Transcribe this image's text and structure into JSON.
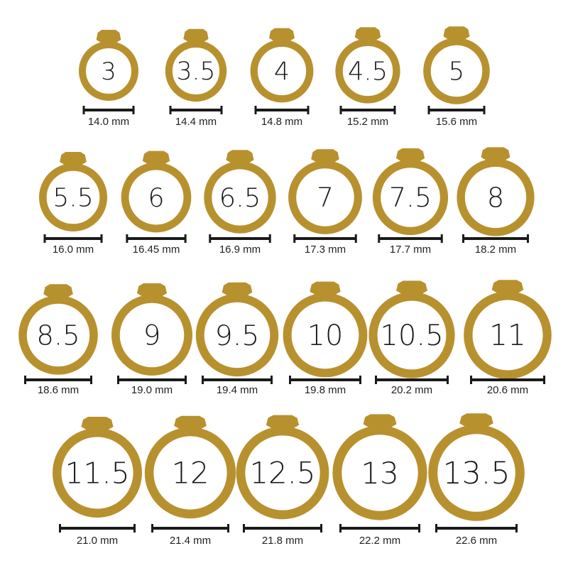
{
  "colors": {
    "gold": "#B8912F",
    "bar": "#1a1a1a",
    "text": "#1a1a1a"
  },
  "unit": "mm",
  "chart_data": {
    "type": "table",
    "rows": [
      {
        "rings": [
          {
            "size": "3",
            "diameter_mm": 14.0,
            "label": "14.0 mm"
          },
          {
            "size": "3.5",
            "diameter_mm": 14.4,
            "label": "14.4 mm"
          },
          {
            "size": "4",
            "diameter_mm": 14.8,
            "label": "14.8 mm"
          },
          {
            "size": "4.5",
            "diameter_mm": 15.2,
            "label": "15.2 mm"
          },
          {
            "size": "5",
            "diameter_mm": 15.6,
            "label": "15.6 mm"
          }
        ]
      },
      {
        "rings": [
          {
            "size": "5.5",
            "diameter_mm": 16.0,
            "label": "16.0 mm"
          },
          {
            "size": "6",
            "diameter_mm": 16.45,
            "label": "16.45 mm"
          },
          {
            "size": "6.5",
            "diameter_mm": 16.9,
            "label": "16.9 mm"
          },
          {
            "size": "7",
            "diameter_mm": 17.3,
            "label": "17.3 mm"
          },
          {
            "size": "7.5",
            "diameter_mm": 17.7,
            "label": "17.7 mm"
          },
          {
            "size": "8",
            "diameter_mm": 18.2,
            "label": "18.2 mm"
          }
        ]
      },
      {
        "rings": [
          {
            "size": "8.5",
            "diameter_mm": 18.6,
            "label": "18.6 mm"
          },
          {
            "size": "9",
            "diameter_mm": 19.0,
            "label": "19.0 mm"
          },
          {
            "size": "9.5",
            "diameter_mm": 19.4,
            "label": "19.4 mm"
          },
          {
            "size": "10",
            "diameter_mm": 19.8,
            "label": "19.8 mm"
          },
          {
            "size": "10.5",
            "diameter_mm": 20.2,
            "label": "20.2 mm"
          },
          {
            "size": "11",
            "diameter_mm": 20.6,
            "label": "20.6 mm"
          }
        ]
      },
      {
        "rings": [
          {
            "size": "11.5",
            "diameter_mm": 21.0,
            "label": "21.0 mm"
          },
          {
            "size": "12",
            "diameter_mm": 21.4,
            "label": "21.4 mm"
          },
          {
            "size": "12.5",
            "diameter_mm": 21.8,
            "label": "21.8 mm"
          },
          {
            "size": "13",
            "diameter_mm": 22.2,
            "label": "22.2 mm"
          },
          {
            "size": "13.5",
            "diameter_mm": 22.6,
            "label": "22.6 mm"
          }
        ]
      }
    ]
  }
}
